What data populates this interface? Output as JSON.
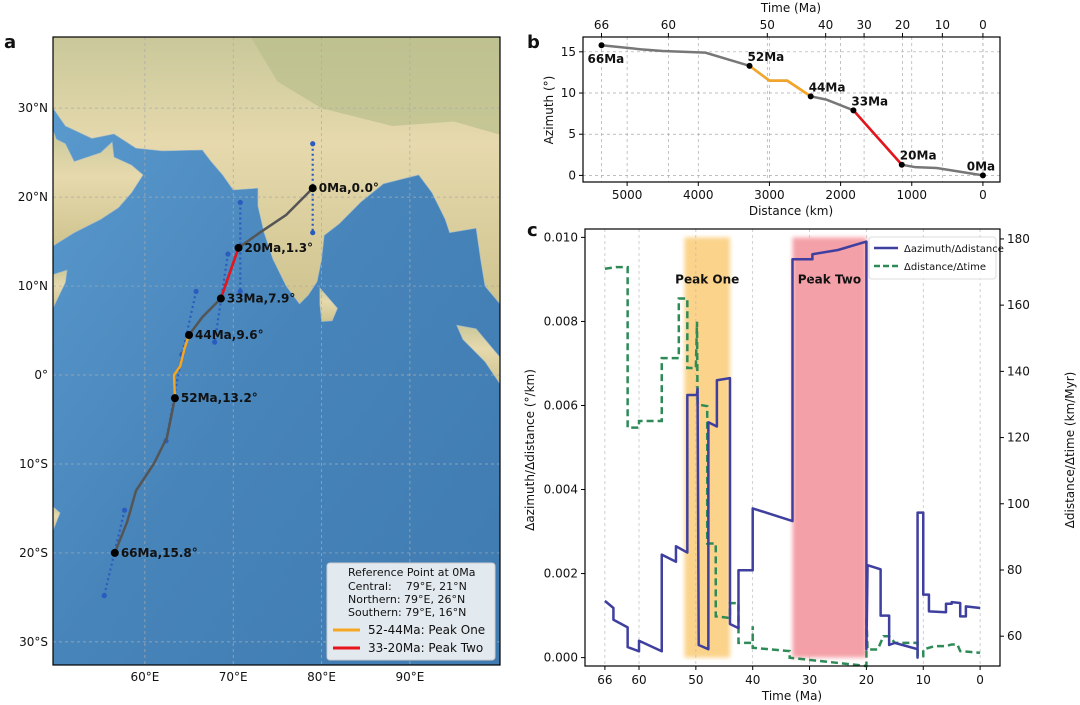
{
  "panel_labels": {
    "a": "a",
    "b": "b",
    "c": "c"
  },
  "colors": {
    "track": "#555555",
    "peak_one": "#f5a623",
    "peak_two": "#e8141b",
    "dotted": "#2a5cbf",
    "blue_series": "#3f3f9f",
    "green_series": "#2e8b57",
    "peak_one_band": "#fbd38a",
    "peak_two_band": "#f4a0a8"
  },
  "chart_data": [
    {
      "type": "map",
      "panel": "a",
      "lon_ticks": [
        "60°E",
        "70°E",
        "80°E",
        "90°E"
      ],
      "lon_tick_values": [
        60,
        70,
        80,
        90
      ],
      "lat_ticks": [
        "30°N",
        "20°N",
        "10°N",
        "0°",
        "10°S",
        "20°S",
        "30°S"
      ],
      "lat_tick_values": [
        30,
        20,
        10,
        0,
        -10,
        -20,
        -30
      ],
      "lon_range": [
        49.6,
        100.2
      ],
      "lat_range": [
        -32.6,
        38
      ],
      "track_points": [
        {
          "label": "0Ma,0.0°",
          "lon": 79,
          "lat": 21
        },
        {
          "label": "20Ma,1.3°",
          "lon": 70.6,
          "lat": 14.3
        },
        {
          "label": "33Ma,7.9°",
          "lon": 68.6,
          "lat": 8.6
        },
        {
          "label": "44Ma,9.6°",
          "lon": 65.0,
          "lat": 4.5
        },
        {
          "label": "52Ma,13.2°",
          "lon": 63.4,
          "lat": -2.6
        },
        {
          "label": "66Ma,15.8°",
          "lon": 56.6,
          "lat": -20
        }
      ],
      "track_path": [
        [
          79,
          21
        ],
        [
          76,
          18
        ],
        [
          73,
          16
        ],
        [
          70.6,
          14.3
        ],
        [
          68.6,
          8.6
        ],
        [
          66.5,
          6.5
        ],
        [
          65,
          4.5
        ],
        [
          64.5,
          3
        ],
        [
          64,
          1
        ],
        [
          63.3,
          0
        ],
        [
          63.4,
          -2.6
        ],
        [
          62.5,
          -7
        ],
        [
          61,
          -10
        ],
        [
          59,
          -13
        ],
        [
          58,
          -16.5
        ],
        [
          56.6,
          -20
        ]
      ],
      "peak_one_path": [
        [
          65,
          4.5
        ],
        [
          64.5,
          3
        ],
        [
          64,
          1
        ],
        [
          63.3,
          0
        ],
        [
          63.4,
          -2.6
        ]
      ],
      "peak_two_path": [
        [
          70.6,
          14.3
        ],
        [
          68.6,
          8.6
        ]
      ],
      "dotted_lines": [
        [
          [
            79,
            26
          ],
          [
            79,
            16
          ]
        ],
        [
          [
            70.8,
            19.4
          ],
          [
            70.8,
            9.4
          ]
        ],
        [
          [
            69.4,
            13.6
          ],
          [
            67.9,
            3.7
          ]
        ],
        [
          [
            65.8,
            9.4
          ],
          [
            64.2,
            2.3
          ]
        ],
        [
          [
            64.2,
            2.3
          ],
          [
            62.4,
            -7.4
          ]
        ],
        [
          [
            57.7,
            -15.2
          ],
          [
            55.4,
            -24.8
          ]
        ]
      ],
      "legend": {
        "title": "Reference Point at 0Ma",
        "rows": [
          "Central:    79°E, 21°N",
          "Northern: 79°E, 26°N",
          "Southern: 79°E, 16°N"
        ],
        "entries": [
          "52-44Ma: Peak One",
          "33-20Ma: Peak Two"
        ],
        "placement": "bottom-right"
      }
    },
    {
      "type": "line",
      "panel": "b",
      "xlabel": "Distance (km)",
      "ylabel": "Azimuth (°)",
      "top_xlabel": "Time (Ma)",
      "xlim": [
        5620,
        -240
      ],
      "ylim": [
        -0.8,
        16.8
      ],
      "x_ticks": [
        5000,
        4000,
        3000,
        2000,
        1000,
        0
      ],
      "y_ticks": [
        0,
        5,
        10,
        15
      ],
      "top_ticks": [
        {
          "time": 66,
          "distance": 5360
        },
        {
          "time": 60,
          "distance": 4420
        },
        {
          "time": 50,
          "distance": 3030
        },
        {
          "time": 40,
          "distance": 2210
        },
        {
          "time": 30,
          "distance": 1670
        },
        {
          "time": 20,
          "distance": 1130
        },
        {
          "time": 10,
          "distance": 570
        },
        {
          "time": 0,
          "distance": 0
        }
      ],
      "grid": true,
      "x": [
        5360,
        4800,
        4500,
        3900,
        3280,
        3000,
        2750,
        2420,
        2200,
        1820,
        1140,
        950,
        650,
        0
      ],
      "y": [
        15.8,
        15.3,
        15.1,
        14.9,
        13.3,
        11.5,
        11.5,
        9.6,
        9.2,
        7.9,
        1.3,
        1.0,
        0.9,
        0
      ],
      "peak_one_range": [
        3280,
        2420
      ],
      "peak_two_range": [
        1820,
        1140
      ],
      "points": [
        {
          "label": "66Ma",
          "distance": 5360,
          "azimuth": 15.8
        },
        {
          "label": "52Ma",
          "distance": 3280,
          "azimuth": 13.3
        },
        {
          "label": "44Ma",
          "distance": 2420,
          "azimuth": 9.6
        },
        {
          "label": "33Ma",
          "distance": 1820,
          "azimuth": 7.9
        },
        {
          "label": "20Ma",
          "distance": 1140,
          "azimuth": 1.3
        },
        {
          "label": "0Ma",
          "distance": 0,
          "azimuth": 0
        }
      ]
    },
    {
      "type": "line",
      "panel": "c",
      "xlabel": "Time (Ma)",
      "ylabel_left": "Δazimuth/Δdistance (°/km)",
      "ylabel_right": "Δdistance/Δtime (km/Myr)",
      "xlim": [
        69.5,
        -3.5
      ],
      "ylim_left": [
        -0.0002,
        0.0102
      ],
      "ylim_right": [
        51,
        183
      ],
      "x_ticks": [
        66,
        60,
        50,
        40,
        30,
        20,
        10,
        0
      ],
      "y_ticks_left": [
        "0.000",
        "0.002",
        "0.004",
        "0.006",
        "0.008",
        "0.010"
      ],
      "y_ticks_right": [
        60,
        80,
        100,
        120,
        140,
        160,
        180
      ],
      "grid": "vertical",
      "bands": [
        {
          "label": "Peak One",
          "from": 52,
          "to": 44
        },
        {
          "label": "Peak Two",
          "from": 33,
          "to": 20
        }
      ],
      "legend_placement": "top-right",
      "series": [
        {
          "name": "Δazimuth/Δdistance",
          "axis": "left",
          "style": "solid",
          "points": [
            [
              66,
              0.00135
            ],
            [
              64.5,
              0.00118
            ],
            [
              64.5,
              0.0009
            ],
            [
              62,
              0.00072
            ],
            [
              62,
              0.00025
            ],
            [
              60,
              0.00015
            ],
            [
              60,
              0.0004
            ],
            [
              56,
              0.00015
            ],
            [
              56,
              0.00245
            ],
            [
              53.5,
              0.00228
            ],
            [
              53.5,
              0.00265
            ],
            [
              51.5,
              0.0025
            ],
            [
              51.5,
              0.00625
            ],
            [
              49.8,
              0.00625
            ],
            [
              49.7,
              0.0064
            ],
            [
              49.5,
              0.0003
            ],
            [
              47.8,
              0.0002
            ],
            [
              47.8,
              0.0056
            ],
            [
              46.3,
              0.0055
            ],
            [
              46.3,
              0.0066
            ],
            [
              44,
              0.00665
            ],
            [
              44,
              0.0008
            ],
            [
              42.5,
              0.0007
            ],
            [
              42.5,
              0.00208
            ],
            [
              40,
              0.00208
            ],
            [
              40,
              0.00355
            ],
            [
              33,
              0.00325
            ],
            [
              33,
              0.00948
            ],
            [
              29.5,
              0.00948
            ],
            [
              29.5,
              0.0096
            ],
            [
              25,
              0.0097
            ],
            [
              20,
              0.0099
            ],
            [
              20,
              0.0002
            ],
            [
              19.8,
              0.0022
            ],
            [
              17.5,
              0.0021
            ],
            [
              17.5,
              0.001
            ],
            [
              16,
              0.001
            ],
            [
              16,
              0.0003
            ],
            [
              15,
              0.00035
            ],
            [
              11,
              0.0002
            ],
            [
              11,
              0.0
            ],
            [
              11,
              0.00345
            ],
            [
              10,
              0.00345
            ],
            [
              10,
              0.0015
            ],
            [
              9,
              0.0015
            ],
            [
              9,
              0.0011
            ],
            [
              6,
              0.00108
            ],
            [
              6,
              0.00128
            ],
            [
              5,
              0.00128
            ],
            [
              5,
              0.00132
            ],
            [
              3.5,
              0.0013
            ],
            [
              3.5,
              0.00098
            ],
            [
              2.5,
              0.00098
            ],
            [
              2.5,
              0.00122
            ],
            [
              0,
              0.00118
            ]
          ]
        },
        {
          "name": "Δdistance/Δtime",
          "axis": "right",
          "style": "dashed",
          "points": [
            [
              66,
              171
            ],
            [
              64,
              171.5
            ],
            [
              62,
              171.5
            ],
            [
              62,
              123
            ],
            [
              60,
              123
            ],
            [
              60,
              125
            ],
            [
              56,
              125
            ],
            [
              56,
              144
            ],
            [
              53,
              144
            ],
            [
              53,
              162
            ],
            [
              51.5,
              162
            ],
            [
              51.5,
              141
            ],
            [
              50,
              141
            ],
            [
              49.8,
              155
            ],
            [
              49.7,
              130
            ],
            [
              48,
              129.5
            ],
            [
              48,
              88
            ],
            [
              46.5,
              88
            ],
            [
              46.5,
              66
            ],
            [
              44,
              65.5
            ],
            [
              44,
              70
            ],
            [
              42.5,
              70
            ],
            [
              42.5,
              58
            ],
            [
              40,
              58
            ],
            [
              40,
              63
            ],
            [
              40,
              56.5
            ],
            [
              33.5,
              55.5
            ],
            [
              33.5,
              53.5
            ],
            [
              20,
              51
            ],
            [
              20,
              66
            ],
            [
              19.8,
              56
            ],
            [
              18,
              56
            ],
            [
              17,
              60
            ],
            [
              16,
              60
            ],
            [
              15,
              58
            ],
            [
              11,
              58
            ],
            [
              11,
              54
            ],
            [
              10,
              54
            ],
            [
              10,
              56
            ],
            [
              8,
              57
            ],
            [
              6,
              57
            ],
            [
              5,
              57.5
            ],
            [
              4,
              57.5
            ],
            [
              3.5,
              55.5
            ],
            [
              0,
              55
            ]
          ]
        }
      ]
    }
  ]
}
